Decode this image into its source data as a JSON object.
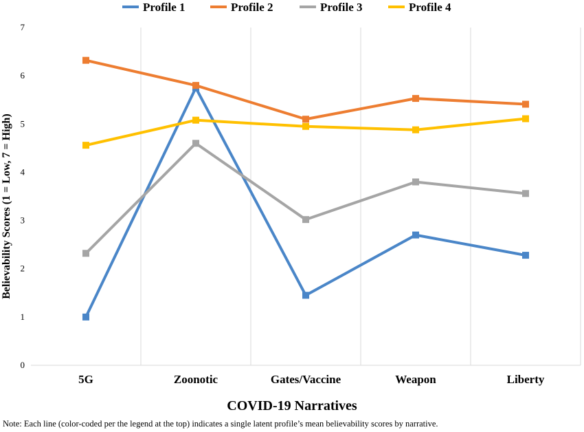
{
  "chart_data": {
    "type": "line",
    "categories": [
      "5G",
      "Zoonotic",
      "Gates/Vaccine",
      "Weapon",
      "Liberty"
    ],
    "series": [
      {
        "name": "Profile 1",
        "color": "#4a86c8",
        "values": [
          1.0,
          5.75,
          1.45,
          2.7,
          2.28
        ]
      },
      {
        "name": "Profile 2",
        "color": "#ed7d31",
        "values": [
          6.32,
          5.8,
          5.1,
          5.53,
          5.41
        ]
      },
      {
        "name": "Profile 3",
        "color": "#a5a5a5",
        "values": [
          2.32,
          4.6,
          3.02,
          3.8,
          3.56
        ]
      },
      {
        "name": "Profile 4",
        "color": "#ffc000",
        "values": [
          4.56,
          5.08,
          4.95,
          4.88,
          5.11
        ]
      }
    ],
    "ylim": [
      0,
      7
    ],
    "yticks": [
      "0",
      "1",
      "2",
      "3",
      "4",
      "5",
      "6",
      "7"
    ],
    "xlabel": "COVID-19 Narratives",
    "ylabel": "Believability Scores (1 = Low, 7 = High)",
    "legend_position": "top",
    "grid": "vertical",
    "gridline_color": "#d9d9d9"
  },
  "note": "Note: Each line (color-coded per the legend at the top) indicates a single latent profile’s mean believability scores by narrative."
}
